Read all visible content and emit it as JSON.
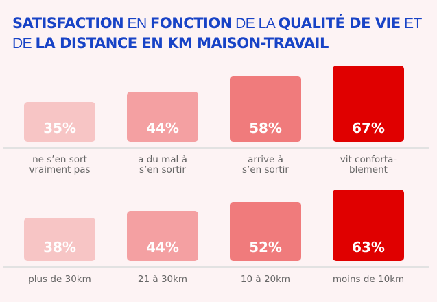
{
  "title": {
    "parts": [
      {
        "text": "SATISFACTION",
        "bold": true
      },
      {
        "text": " EN ",
        "bold": false
      },
      {
        "text": "FONCTION",
        "bold": true
      },
      {
        "text": " DE LA ",
        "bold": false
      },
      {
        "text": "QUALITÉ DE VIE",
        "bold": true
      },
      {
        "text": " ET DE ",
        "bold": false
      },
      {
        "text": "LA DISTANCE EN KM MAISON-TRAVAIL",
        "bold": true
      }
    ]
  },
  "colors": [
    "#f7c5c5",
    "#f4a0a2",
    "#f07b7c",
    "#e00000"
  ],
  "chart_data": [
    {
      "type": "bar",
      "title": "Satisfaction en fonction de la qualité de vie",
      "categories": [
        "ne s’en sort vraiment pas",
        "a du mal à s’en sortir",
        "arrive à s’en sortir",
        "vit confortablement"
      ],
      "display_categories": [
        "ne s’en sort\nvraiment pas",
        "a du mal à\ns’en sortir",
        "arrive à\ns’en sortir",
        "vit conforta-\nblement"
      ],
      "values": [
        35,
        44,
        58,
        67
      ],
      "labels": [
        "35%",
        "44%",
        "58%",
        "67%"
      ],
      "ylim": [
        0,
        100
      ]
    },
    {
      "type": "bar",
      "title": "Satisfaction en fonction de la distance en km maison-travail",
      "categories": [
        "plus de 30km",
        "21 à 30km",
        "10 à 20km",
        "moins de 10km"
      ],
      "display_categories": [
        "plus de 30km",
        "21 à 30km",
        "10 à 20km",
        "moins de 10km"
      ],
      "values": [
        38,
        44,
        52,
        63
      ],
      "labels": [
        "38%",
        "44%",
        "52%",
        "63%"
      ],
      "ylim": [
        0,
        100
      ]
    }
  ]
}
